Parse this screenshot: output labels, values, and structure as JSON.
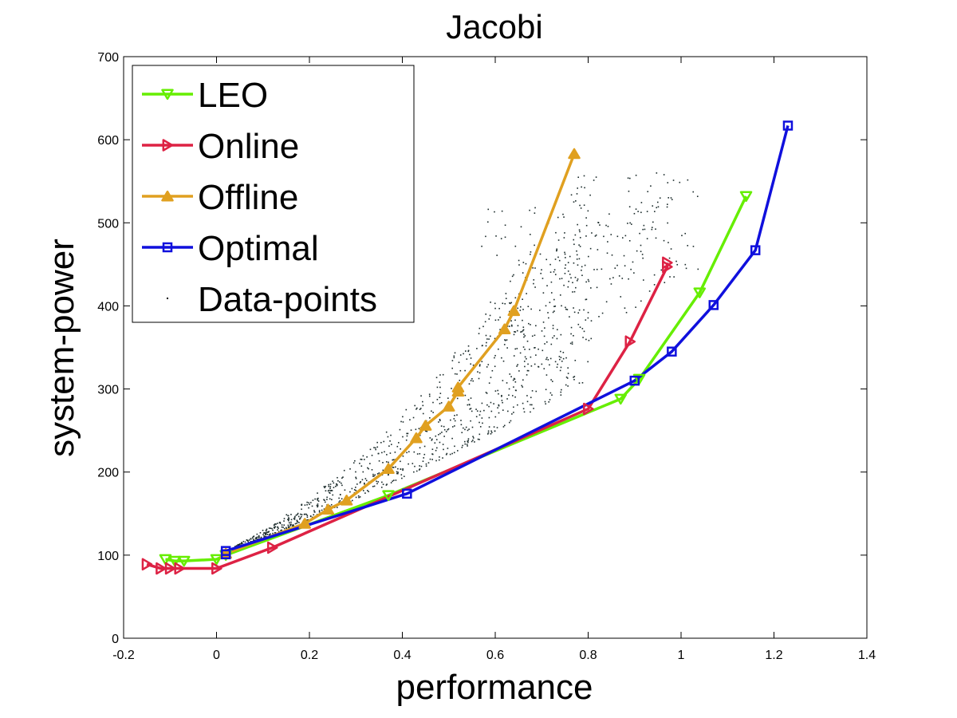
{
  "chart_data": {
    "type": "line",
    "title": "Jacobi",
    "xlabel": "performance",
    "ylabel": "system-power",
    "xlim": [
      -0.2,
      1.4
    ],
    "ylim": [
      0,
      700
    ],
    "xticks": [
      -0.2,
      0,
      0.2,
      0.4,
      0.6,
      0.8,
      1,
      1.2,
      1.4
    ],
    "yticks": [
      0,
      100,
      200,
      300,
      400,
      500,
      600,
      700
    ],
    "legend_position": "top-left",
    "grid": false,
    "series": [
      {
        "name": "LEO",
        "color": "#66ee00",
        "marker": "triangle-down",
        "points": [
          [
            -0.11,
            95
          ],
          [
            -0.09,
            93
          ],
          [
            -0.07,
            93
          ],
          [
            0.0,
            95
          ],
          [
            0.02,
            100
          ],
          [
            0.37,
            172
          ],
          [
            0.87,
            288
          ],
          [
            0.91,
            312
          ],
          [
            1.04,
            416
          ],
          [
            1.14,
            532
          ]
        ]
      },
      {
        "name": "Online",
        "color": "#dd2244",
        "marker": "triangle-right",
        "points": [
          [
            -0.15,
            89
          ],
          [
            -0.12,
            84
          ],
          [
            -0.1,
            84
          ],
          [
            -0.08,
            84
          ],
          [
            0.0,
            84
          ],
          [
            0.12,
            109
          ],
          [
            0.8,
            276
          ],
          [
            0.89,
            357
          ],
          [
            0.97,
            447
          ],
          [
            0.97,
            452
          ]
        ]
      },
      {
        "name": "Offline",
        "color": "#e0a020",
        "marker": "triangle-up",
        "points": [
          [
            0.02,
            102
          ],
          [
            0.19,
            138
          ],
          [
            0.24,
            155
          ],
          [
            0.28,
            166
          ],
          [
            0.37,
            204
          ],
          [
            0.43,
            241
          ],
          [
            0.45,
            256
          ],
          [
            0.5,
            279
          ],
          [
            0.52,
            297
          ],
          [
            0.52,
            302
          ],
          [
            0.62,
            372
          ],
          [
            0.64,
            394
          ],
          [
            0.77,
            583
          ]
        ]
      },
      {
        "name": "Optimal",
        "color": "#1010dd",
        "marker": "square",
        "points": [
          [
            0.02,
            101
          ],
          [
            0.02,
            105
          ],
          [
            0.41,
            174
          ],
          [
            0.9,
            310
          ],
          [
            0.98,
            345
          ],
          [
            1.07,
            401
          ],
          [
            1.16,
            467
          ],
          [
            1.23,
            617
          ]
        ]
      },
      {
        "name": "Data-points",
        "color": "#000000",
        "marker": "dot"
      }
    ]
  }
}
